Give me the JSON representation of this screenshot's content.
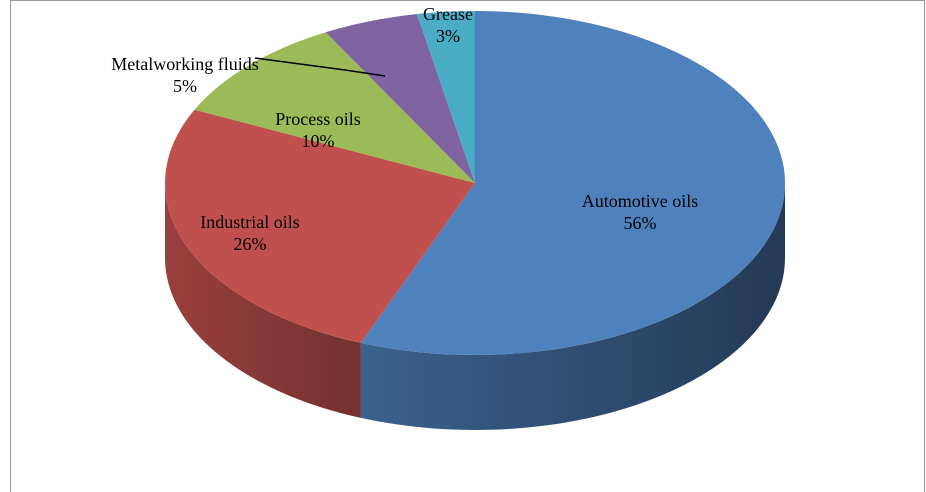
{
  "chart_data": {
    "type": "pie",
    "categories": [
      "Automotive oils",
      "Industrial oils",
      "Process oils",
      "Metalworking fluids",
      "Grease"
    ],
    "values": [
      56,
      26,
      10,
      5,
      3
    ],
    "value_labels": [
      "56%",
      "26%",
      "10%",
      "5%",
      "3%"
    ],
    "colors": [
      "#4f81bd",
      "#c0504d",
      "#9bbb59",
      "#8064a2",
      "#4bacc6"
    ],
    "style": "3d"
  }
}
